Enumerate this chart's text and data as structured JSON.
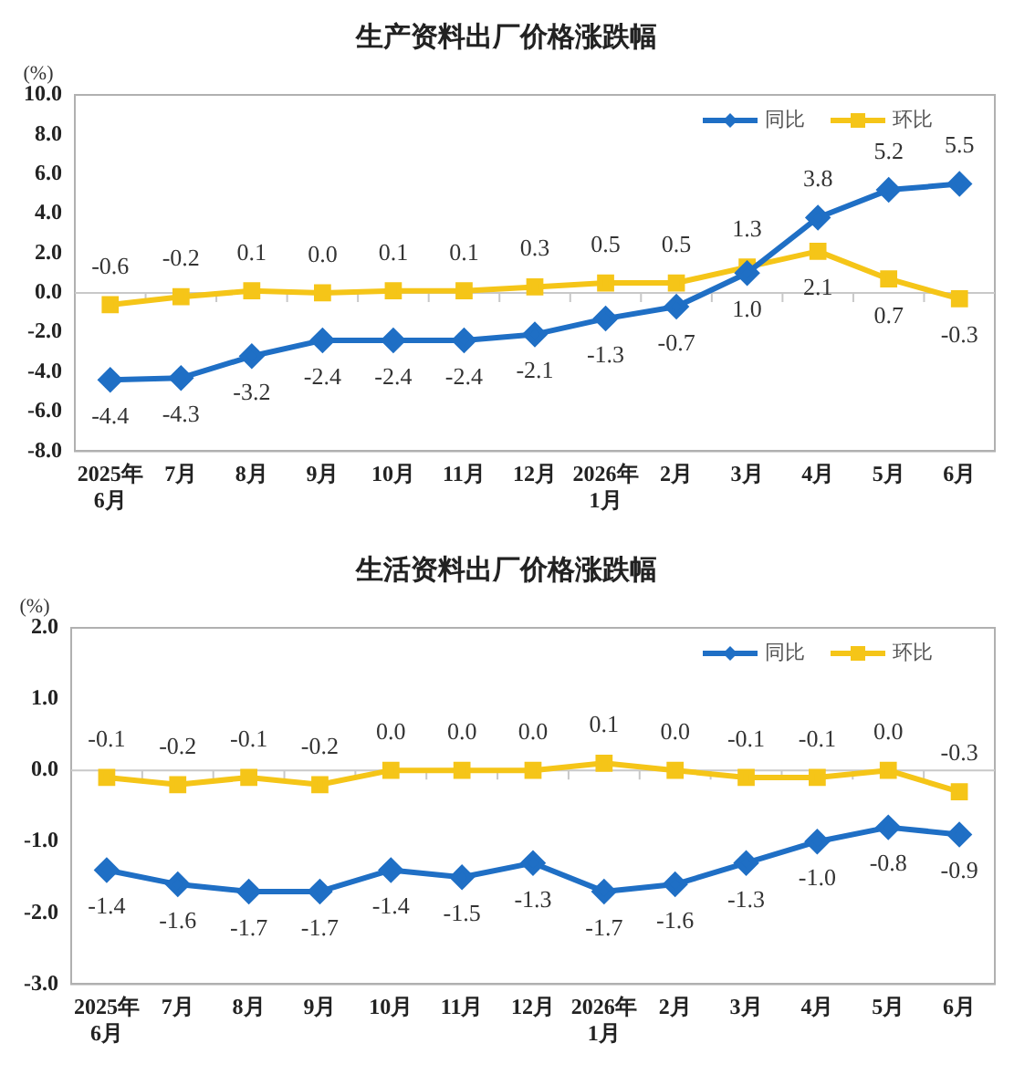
{
  "chart_data": [
    {
      "type": "line",
      "title": "生产资料出厂价格涨跌幅",
      "ylabel": "(%)",
      "categories": [
        "2025年\n6月",
        "7月",
        "8月",
        "9月",
        "10月",
        "11月",
        "12月",
        "2026年\n1月",
        "2月",
        "3月",
        "4月",
        "5月",
        "6月"
      ],
      "series": [
        {
          "name": "同比",
          "color": "#1f6fc5",
          "marker": "diamond",
          "values": [
            -4.4,
            -4.3,
            -3.2,
            -2.4,
            -2.4,
            -2.4,
            -2.1,
            -1.3,
            -0.7,
            1.0,
            3.8,
            5.2,
            5.5
          ],
          "value_labels": [
            "-4.4",
            "-4.3",
            "-3.2",
            "-2.4",
            "-2.4",
            "-2.4",
            "-2.1",
            "-1.3",
            "-0.7",
            "1.0",
            "3.8",
            "5.2",
            "5.5"
          ]
        },
        {
          "name": "环比",
          "color": "#f5c518",
          "marker": "square",
          "values": [
            -0.6,
            -0.2,
            0.1,
            0.0,
            0.1,
            0.1,
            0.3,
            0.5,
            0.5,
            1.3,
            2.1,
            0.7,
            -0.3
          ],
          "value_labels": [
            "-0.6",
            "-0.2",
            "0.1",
            "0.0",
            "0.1",
            "0.1",
            "0.3",
            "0.5",
            "0.5",
            "1.3",
            "2.1",
            "0.7",
            "-0.3"
          ]
        }
      ],
      "ylim": [
        -8,
        10
      ],
      "yticks": [
        {
          "value": -8,
          "label": "-8.0"
        },
        {
          "value": -6,
          "label": "-6.0"
        },
        {
          "value": -4,
          "label": "-4.0"
        },
        {
          "value": -2,
          "label": "-2.0"
        },
        {
          "value": 0,
          "label": "0.0"
        },
        {
          "value": 2,
          "label": "2.0"
        },
        {
          "value": 4,
          "label": "4.0"
        },
        {
          "value": 6,
          "label": "6.0"
        },
        {
          "value": 8,
          "label": "8.0"
        },
        {
          "value": 10,
          "label": "10.0"
        }
      ],
      "ref_lines": [
        {
          "axis": "y",
          "value": 0,
          "color": "#c8c8c8"
        }
      ],
      "grid": false,
      "legend": "top right",
      "line_style": "solid"
    },
    {
      "type": "line",
      "title": "生活资料出厂价格涨跌幅",
      "ylabel": "(%)",
      "categories": [
        "2025年\n6月",
        "7月",
        "8月",
        "9月",
        "10月",
        "11月",
        "12月",
        "2026年\n1月",
        "2月",
        "3月",
        "4月",
        "5月",
        "6月"
      ],
      "series": [
        {
          "name": "同比",
          "color": "#1f6fc5",
          "marker": "diamond",
          "values": [
            -1.4,
            -1.6,
            -1.7,
            -1.7,
            -1.4,
            -1.5,
            -1.3,
            -1.7,
            -1.6,
            -1.3,
            -1.0,
            -0.8,
            -0.9
          ],
          "value_labels": [
            "-1.4",
            "-1.6",
            "-1.7",
            "-1.7",
            "-1.4",
            "-1.5",
            "-1.3",
            "-1.7",
            "-1.6",
            "-1.3",
            "-1.0",
            "-0.8",
            "-0.9"
          ]
        },
        {
          "name": "环比",
          "color": "#f5c518",
          "marker": "square",
          "values": [
            -0.1,
            -0.2,
            -0.1,
            -0.2,
            0.0,
            0.0,
            0.0,
            0.1,
            0.0,
            -0.1,
            -0.1,
            0.0,
            -0.3
          ],
          "value_labels": [
            "-0.1",
            "-0.2",
            "-0.1",
            "-0.2",
            "0.0",
            "0.0",
            "0.0",
            "0.1",
            "0.0",
            "-0.1",
            "-0.1",
            "0.0",
            "-0.3"
          ]
        }
      ],
      "ylim": [
        -3,
        2
      ],
      "yticks": [
        {
          "value": -3,
          "label": "-3.0"
        },
        {
          "value": -2,
          "label": "-2.0"
        },
        {
          "value": -1,
          "label": "-1.0"
        },
        {
          "value": 0,
          "label": "0.0"
        },
        {
          "value": 1,
          "label": "1.0"
        },
        {
          "value": 2,
          "label": "2.0"
        }
      ],
      "ref_lines": [
        {
          "axis": "y",
          "value": 0,
          "color": "#c8c8c8"
        }
      ],
      "grid": false,
      "legend": "top right",
      "line_style": "solid"
    }
  ]
}
